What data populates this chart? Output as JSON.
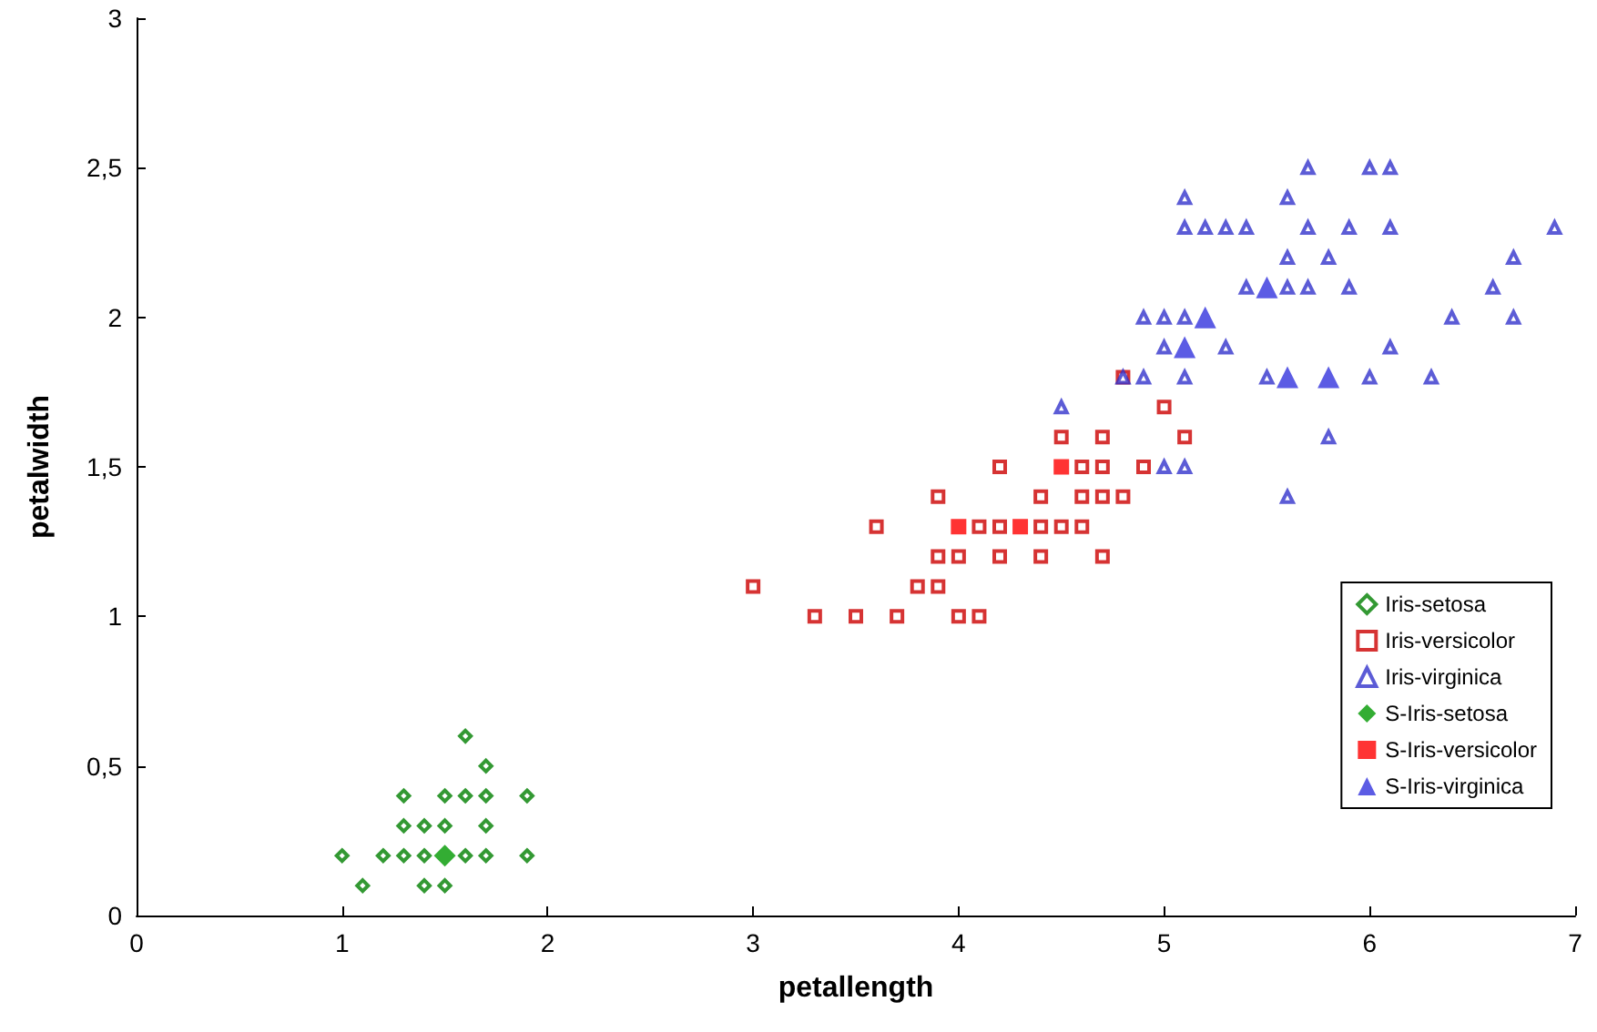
{
  "chart_data": {
    "type": "scatter",
    "xlabel": "petallength",
    "ylabel": "petalwidth",
    "xlim": [
      0,
      7
    ],
    "xticks": [
      0,
      1,
      2,
      3,
      4,
      5,
      6,
      7
    ],
    "ylim": [
      0,
      3
    ],
    "yticks": [
      0,
      {
        "value": 0.5,
        "label": "0,5"
      },
      1,
      {
        "value": 1.5,
        "label": "1,5"
      },
      2,
      {
        "value": 2.5,
        "label": "2,5"
      },
      3
    ],
    "grid": false,
    "legend": "right",
    "series": [
      {
        "name": "Iris-setosa",
        "color": "#008000",
        "marker": "diamond",
        "x": [
          1.0,
          1.2,
          1.3,
          1.4,
          1.6,
          1.7,
          1.9,
          1.1,
          1.4,
          1.5,
          1.3,
          1.4,
          1.5,
          1.7,
          1.3,
          1.5,
          1.6,
          1.7,
          1.9,
          1.7,
          1.6
        ],
        "values": [
          0.2,
          0.2,
          0.2,
          0.2,
          0.2,
          0.2,
          0.2,
          0.1,
          0.1,
          0.1,
          0.3,
          0.3,
          0.3,
          0.3,
          0.4,
          0.4,
          0.4,
          0.4,
          0.4,
          0.5,
          0.6
        ]
      },
      {
        "name": "Iris-versicolor",
        "color": "#cc0000",
        "marker": "square",
        "x": [
          3.3,
          3.5,
          3.7,
          4.0,
          4.1,
          3.0,
          3.8,
          3.9,
          3.9,
          4.0,
          4.2,
          4.4,
          4.7,
          3.6,
          4.1,
          4.2,
          4.4,
          4.5,
          4.6,
          3.9,
          4.4,
          4.6,
          4.7,
          4.8,
          4.2,
          4.6,
          4.7,
          4.9,
          4.5,
          4.7,
          5.1,
          5.0,
          4.8
        ],
        "values": [
          1.0,
          1.0,
          1.0,
          1.0,
          1.0,
          1.1,
          1.1,
          1.1,
          1.2,
          1.2,
          1.2,
          1.2,
          1.2,
          1.3,
          1.3,
          1.3,
          1.3,
          1.3,
          1.3,
          1.4,
          1.4,
          1.4,
          1.4,
          1.4,
          1.5,
          1.5,
          1.5,
          1.5,
          1.6,
          1.6,
          1.6,
          1.7,
          1.8
        ]
      },
      {
        "name": "Iris-virginica",
        "color": "#3333cc",
        "marker": "triangle",
        "x": [
          5.6,
          5.0,
          5.1,
          5.8,
          4.5,
          4.8,
          4.9,
          5.1,
          5.5,
          6.0,
          6.3,
          5.0,
          5.3,
          6.1,
          4.9,
          5.0,
          5.1,
          6.4,
          6.7,
          5.4,
          5.6,
          5.7,
          5.9,
          6.6,
          5.6,
          5.8,
          6.7,
          5.1,
          5.2,
          5.3,
          5.4,
          5.7,
          5.9,
          6.1,
          6.9,
          5.1,
          5.6,
          5.7,
          6.0,
          6.1
        ],
        "values": [
          1.4,
          1.5,
          1.5,
          1.6,
          1.7,
          1.8,
          1.8,
          1.8,
          1.8,
          1.8,
          1.8,
          1.9,
          1.9,
          1.9,
          2.0,
          2.0,
          2.0,
          2.0,
          2.0,
          2.1,
          2.1,
          2.1,
          2.1,
          2.1,
          2.2,
          2.2,
          2.2,
          2.3,
          2.3,
          2.3,
          2.3,
          2.3,
          2.3,
          2.3,
          2.3,
          2.4,
          2.4,
          2.5,
          2.5,
          2.5
        ]
      },
      {
        "name": "S-Iris-setosa",
        "color": "#009900",
        "marker": "diamond",
        "x": [
          1.5
        ],
        "values": [
          0.2
        ],
        "sizes": [
          1
        ]
      },
      {
        "name": "S-Iris-versicolor",
        "color": "#ff0000",
        "marker": "square",
        "x": [
          4.0,
          4.3,
          4.5
        ],
        "values": [
          1.3,
          1.3,
          1.5
        ],
        "sizes": [
          1,
          1,
          1
        ]
      },
      {
        "name": "S-Iris-virginica",
        "color": "#3333dd",
        "marker": "triangle",
        "x": [
          5.1,
          5.2,
          5.5,
          5.6,
          5.8
        ],
        "values": [
          1.9,
          2.0,
          2.1,
          1.8,
          1.8
        ],
        "sizes": [
          1,
          1,
          1,
          1,
          1
        ]
      }
    ]
  }
}
